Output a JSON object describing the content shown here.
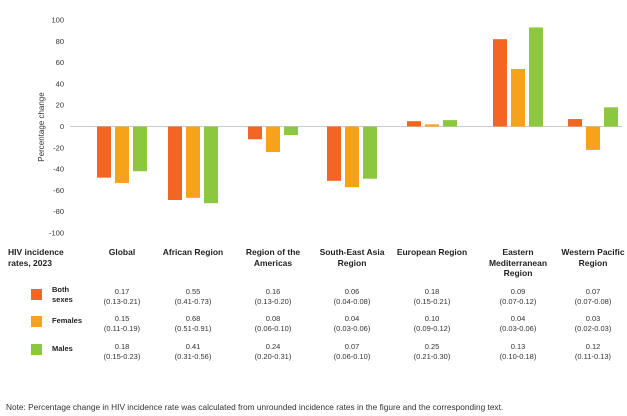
{
  "chart_data": {
    "type": "bar",
    "ylabel": "Percentage change",
    "ylim": [
      -100,
      100
    ],
    "yticks": [
      100,
      80,
      60,
      40,
      20,
      0,
      -20,
      -40,
      -60,
      -80,
      -100
    ],
    "grid": false,
    "categories": [
      "Global",
      "African Region",
      "Region of the Americas",
      "South-East Asia Region",
      "European Region",
      "Eastern Mediterranean Region",
      "Western Pacific Region"
    ],
    "series": [
      {
        "name": "Both sexes",
        "color": "#f26522",
        "values": [
          -48,
          -69,
          -12,
          -51,
          5,
          82,
          7
        ]
      },
      {
        "name": "Females",
        "color": "#f7a21b",
        "values": [
          -53,
          -67,
          -24,
          -57,
          2,
          54,
          -22
        ]
      },
      {
        "name": "Males",
        "color": "#8dc63f",
        "values": [
          -42,
          -72,
          -8,
          -49,
          6,
          93,
          18
        ]
      }
    ]
  },
  "table": {
    "header": "HIV incidence rates, 2023",
    "columns": [
      "Global",
      "African Region",
      "Region of the Americas",
      "South-East Asia Region",
      "European Region",
      "Eastern Mediterranean Region",
      "Western Pacific Region"
    ],
    "rows": [
      {
        "label": "Both sexes",
        "color": "#f26522",
        "values": [
          "0.17",
          "0.55",
          "0.16",
          "0.06",
          "0.18",
          "0.09",
          "0.07"
        ],
        "ranges": [
          "(0.13-0.21)",
          "(0.41-0.73)",
          "(0.13-0.20)",
          "(0.04-0.08)",
          "(0.15-0.21)",
          "(0.07-0.12)",
          "(0.07-0.08)"
        ]
      },
      {
        "label": "Females",
        "color": "#f7a21b",
        "values": [
          "0.15",
          "0.68",
          "0.08",
          "0.04",
          "0.10",
          "0.04",
          "0.03"
        ],
        "ranges": [
          "(0.11-0.19)",
          "(0.51-0.91)",
          "(0.06-0.10)",
          "(0.03-0.06)",
          "(0.09-0.12)",
          "(0.03-0.06)",
          "(0.02-0.03)"
        ]
      },
      {
        "label": "Males",
        "color": "#8dc63f",
        "values": [
          "0.18",
          "0.41",
          "0.24",
          "0.07",
          "0.25",
          "0.13",
          "0.12"
        ],
        "ranges": [
          "(0.15-0.23)",
          "(0.31-0.56)",
          "(0.20-0.31)",
          "(0.06-0.10)",
          "(0.21-0.30)",
          "(0.10-0.18)",
          "(0.11-0.13)"
        ]
      }
    ]
  },
  "note": "Note: Percentage change in HIV incidence rate was calculated from unrounded incidence rates in the figure and the corresponding text."
}
